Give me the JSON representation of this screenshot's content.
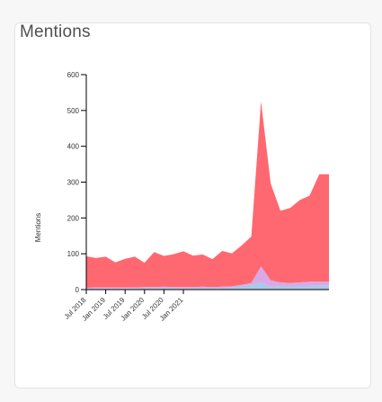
{
  "card": {
    "title": "Mentions"
  },
  "chart_data": {
    "type": "area",
    "stacked": true,
    "ylabel": "Mentions",
    "xlabel": "",
    "ylim": [
      0,
      600
    ],
    "yticks": [
      0,
      100,
      200,
      300,
      400,
      500,
      600
    ],
    "x": [
      "Jul 2018",
      "Oct 2018",
      "Jan 2019",
      "Apr 2019",
      "Jul 2019",
      "Oct 2019",
      "Jan 2020",
      "Apr 2020",
      "Jul 2020",
      "Oct 2020",
      "Jan 2021",
      "Apr 2021",
      "Jul 2021",
      "Oct 2021",
      "Jan 2022",
      "Apr 2022",
      "Jul 2022",
      "Oct 2022",
      "Jan 2023",
      "Apr 2023",
      "Jul 2023",
      "Oct 2023",
      "Jan 2024",
      "Apr 2024",
      "Jul 2024",
      "Oct 2024"
    ],
    "xticks": [
      "Jul 2018",
      "Jan 2019",
      "Jul 2019",
      "Jan 2020",
      "Jul 2020",
      "Jan 2021"
    ],
    "colors": [
      "#a9c9e8",
      "#d9a9e6",
      "#ff6870"
    ],
    "series": [
      {
        "values": [
          2,
          3,
          3,
          3,
          3,
          3,
          4,
          4,
          5,
          4,
          4,
          4,
          5,
          4,
          5,
          6,
          10,
          14,
          20,
          8,
          10,
          10,
          10,
          10,
          12,
          12
        ]
      },
      {
        "values": [
          3,
          3,
          3,
          3,
          3,
          3,
          3,
          3,
          3,
          3,
          3,
          3,
          3,
          3,
          3,
          3,
          3,
          4,
          45,
          18,
          10,
          8,
          10,
          12,
          10,
          10
        ]
      },
      {
        "values": [
          88,
          82,
          86,
          70,
          80,
          86,
          68,
          98,
          86,
          92,
          100,
          88,
          90,
          78,
          100,
          92,
          110,
          130,
          460,
          270,
          200,
          210,
          230,
          240,
          300,
          300
        ]
      }
    ]
  }
}
